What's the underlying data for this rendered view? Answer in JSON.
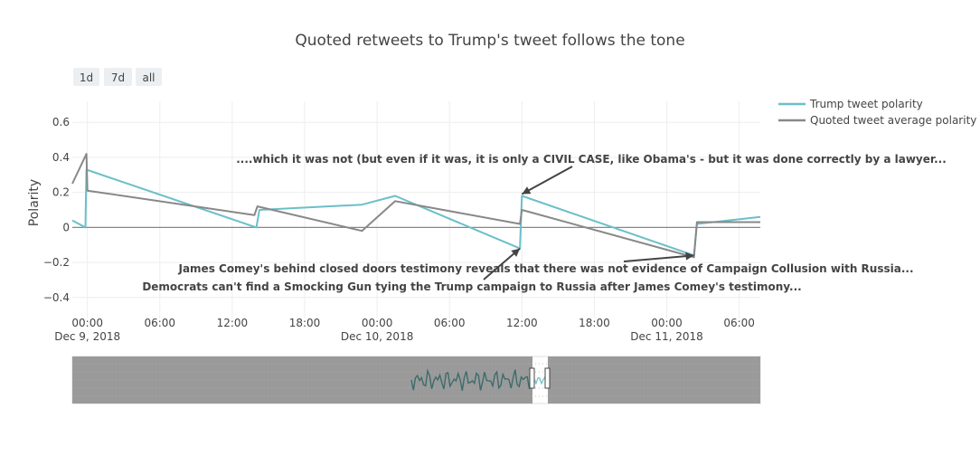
{
  "chart_data": {
    "type": "line",
    "title": "Quoted retweets to Trump's tweet follows the tone",
    "xlabel": "",
    "ylabel": "Polarity",
    "xlim": [
      "2018-12-08T22:45",
      "2018-12-11T07:45"
    ],
    "ylim": [
      -0.52,
      0.72
    ],
    "y_ticks": [
      {
        "v": -0.4,
        "label": "−0.4"
      },
      {
        "v": -0.2,
        "label": "−0.2"
      },
      {
        "v": 0,
        "label": "0"
      },
      {
        "v": 0.2,
        "label": "0.2"
      },
      {
        "v": 0.4,
        "label": "0.4"
      },
      {
        "v": 0.6,
        "label": "0.6"
      }
    ],
    "x_ticks": [
      {
        "t": "2018-12-09T00:00",
        "label": "00:00",
        "sublabel": "Dec 9, 2018"
      },
      {
        "t": "2018-12-09T06:00",
        "label": "06:00",
        "sublabel": ""
      },
      {
        "t": "2018-12-09T12:00",
        "label": "12:00",
        "sublabel": ""
      },
      {
        "t": "2018-12-09T18:00",
        "label": "18:00",
        "sublabel": ""
      },
      {
        "t": "2018-12-10T00:00",
        "label": "00:00",
        "sublabel": "Dec 10, 2018"
      },
      {
        "t": "2018-12-10T06:00",
        "label": "06:00",
        "sublabel": ""
      },
      {
        "t": "2018-12-10T12:00",
        "label": "12:00",
        "sublabel": ""
      },
      {
        "t": "2018-12-10T18:00",
        "label": "18:00",
        "sublabel": ""
      },
      {
        "t": "2018-12-11T00:00",
        "label": "00:00",
        "sublabel": "Dec 11, 2018"
      },
      {
        "t": "2018-12-11T06:00",
        "label": "06:00",
        "sublabel": ""
      }
    ],
    "grid": true,
    "legend_position": "top-right",
    "series": [
      {
        "name": "Trump tweet polarity",
        "color": "#6bbfc9",
        "points": [
          [
            "2018-12-08T22:45",
            0.04
          ],
          [
            "2018-12-08T23:50",
            0.0
          ],
          [
            "2018-12-08T23:55",
            0.33
          ],
          [
            "2018-12-09T14:00",
            0.0
          ],
          [
            "2018-12-09T14:15",
            0.1
          ],
          [
            "2018-12-09T22:45",
            0.13
          ],
          [
            "2018-12-10T01:30",
            0.18
          ],
          [
            "2018-12-10T11:50",
            -0.12
          ],
          [
            "2018-12-10T12:00",
            0.18
          ],
          [
            "2018-12-11T02:15",
            -0.16
          ],
          [
            "2018-12-11T02:30",
            0.02
          ],
          [
            "2018-12-11T07:45",
            0.06
          ]
        ]
      },
      {
        "name": "Quoted tweet average polarity",
        "color": "#888888",
        "points": [
          [
            "2018-12-08T22:45",
            0.25
          ],
          [
            "2018-12-08T23:55",
            0.42
          ],
          [
            "2018-12-09T00:00",
            0.21
          ],
          [
            "2018-12-09T13:50",
            0.07
          ],
          [
            "2018-12-09T14:05",
            0.12
          ],
          [
            "2018-12-09T22:45",
            -0.02
          ],
          [
            "2018-12-10T01:30",
            0.15
          ],
          [
            "2018-12-10T11:50",
            0.02
          ],
          [
            "2018-12-10T12:00",
            0.1
          ],
          [
            "2018-12-11T02:15",
            -0.17
          ],
          [
            "2018-12-11T02:30",
            0.03
          ],
          [
            "2018-12-11T07:45",
            0.03
          ]
        ]
      }
    ],
    "annotations": [
      {
        "text": "....which it was not (but even if it was, it is only a CIVIL CASE, like Obama's - but it was done correctly by a lawyer...",
        "x": "2018-12-10T12:00",
        "y": 0.18,
        "arrow": true
      },
      {
        "text": "James Comey's behind closed doors testimony reveals that there was not evidence of Campaign Collusion with Russia...",
        "x": "2018-12-11T02:15",
        "y": -0.16,
        "arrow": true
      },
      {
        "text": "Democrats can't find a Smocking Gun tying the Trump campaign to Russia after James Comey's testimony...",
        "x": "2018-12-10T11:50",
        "y": -0.12,
        "arrow": true
      }
    ]
  },
  "range_selector": {
    "buttons": [
      {
        "label": "1d"
      },
      {
        "label": "7d"
      },
      {
        "label": "all"
      }
    ]
  },
  "range_slider": {
    "visible": true,
    "series_color": "#3e6b6b"
  }
}
